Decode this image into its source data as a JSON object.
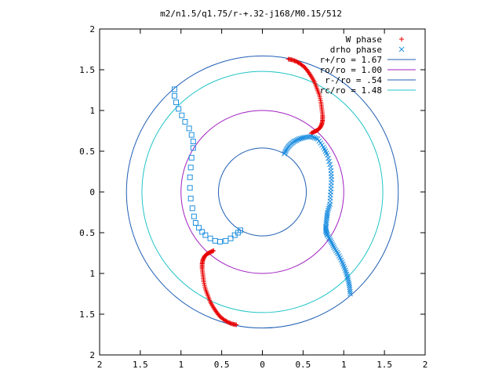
{
  "chart_data": {
    "type": "scatter",
    "title": "m2/n1.5/q1.75/r-+.32-j168/M0.15/512",
    "xlabel": "",
    "ylabel": "",
    "xlim": [
      -2,
      2
    ],
    "ylim": [
      -2,
      2
    ],
    "x_tick_values": [
      -2,
      -1.5,
      -1,
      -0.5,
      0,
      0.5,
      1,
      1.5,
      2
    ],
    "x_tick_labels": [
      "2",
      "1.5",
      "1",
      "0.5",
      "0",
      "0.5",
      "1",
      "1.5",
      "2"
    ],
    "y_tick_values": [
      2,
      1.5,
      1,
      0.5,
      0,
      -0.5,
      -1,
      -1.5,
      -2
    ],
    "y_tick_labels": [
      "2",
      "1.5",
      "1",
      "0.5",
      "0",
      "0.5",
      "1",
      "1.5",
      "2"
    ],
    "grid": false,
    "legend_position": "top-right",
    "circles": [
      {
        "name": "r+/ro = 1.67",
        "radius": 1.67,
        "color": "#1f5fb4"
      },
      {
        "name": "ro/ro = 1.00",
        "radius": 1.0,
        "color": "#a020c0"
      },
      {
        "name": "r-/ro = .54",
        "radius": 0.54,
        "color": "#1f5fb4"
      },
      {
        "name": "rc/ro = 1.48",
        "radius": 1.48,
        "color": "#22c4c8"
      }
    ],
    "series": [
      {
        "name": "W phase",
        "marker": "plus",
        "color": "#e80000",
        "points": [
          [
            0.32,
            1.63
          ],
          [
            0.37,
            1.62
          ],
          [
            0.42,
            1.6
          ],
          [
            0.47,
            1.57
          ],
          [
            0.52,
            1.53
          ],
          [
            0.56,
            1.48
          ],
          [
            0.6,
            1.42
          ],
          [
            0.64,
            1.35
          ],
          [
            0.67,
            1.27
          ],
          [
            0.7,
            1.19
          ],
          [
            0.72,
            1.1
          ],
          [
            0.73,
            1.02
          ],
          [
            0.74,
            0.94
          ],
          [
            0.74,
            0.88
          ],
          [
            0.73,
            0.83
          ],
          [
            0.71,
            0.79
          ],
          [
            0.68,
            0.76
          ],
          [
            0.64,
            0.74
          ],
          [
            0.6,
            0.72
          ],
          [
            -0.32,
            -1.63
          ],
          [
            -0.37,
            -1.62
          ],
          [
            -0.42,
            -1.6
          ],
          [
            -0.47,
            -1.57
          ],
          [
            -0.52,
            -1.53
          ],
          [
            -0.56,
            -1.48
          ],
          [
            -0.6,
            -1.42
          ],
          [
            -0.64,
            -1.35
          ],
          [
            -0.67,
            -1.27
          ],
          [
            -0.7,
            -1.19
          ],
          [
            -0.72,
            -1.1
          ],
          [
            -0.73,
            -1.02
          ],
          [
            -0.74,
            -0.94
          ],
          [
            -0.74,
            -0.88
          ],
          [
            -0.73,
            -0.83
          ],
          [
            -0.71,
            -0.79
          ],
          [
            -0.68,
            -0.76
          ],
          [
            -0.64,
            -0.74
          ],
          [
            -0.6,
            -0.72
          ]
        ]
      },
      {
        "name": "drho phase",
        "marker": "x",
        "color": "#1f8fe0",
        "points": [
          [
            0.27,
            0.47
          ],
          [
            0.3,
            0.53
          ],
          [
            0.34,
            0.58
          ],
          [
            0.39,
            0.62
          ],
          [
            0.45,
            0.65
          ],
          [
            0.52,
            0.67
          ],
          [
            0.6,
            0.68
          ],
          [
            0.68,
            0.65
          ],
          [
            0.75,
            0.55
          ],
          [
            0.8,
            0.45
          ],
          [
            0.84,
            0.3
          ],
          [
            0.85,
            0.15
          ],
          [
            0.84,
            0.0
          ],
          [
            0.83,
            -0.15
          ],
          [
            0.8,
            -0.25
          ],
          [
            0.79,
            -0.33
          ],
          [
            0.78,
            -0.42
          ],
          [
            0.78,
            -0.48
          ],
          [
            0.8,
            -0.53
          ],
          [
            0.84,
            -0.6
          ],
          [
            0.88,
            -0.68
          ],
          [
            0.93,
            -0.76
          ],
          [
            0.98,
            -0.86
          ],
          [
            1.02,
            -0.96
          ],
          [
            1.05,
            -1.06
          ],
          [
            1.07,
            -1.15
          ],
          [
            1.08,
            -1.25
          ]
        ]
      },
      {
        "name": "",
        "marker": "square",
        "color": "#1f8fe0",
        "points": [
          [
            -1.08,
            1.26
          ],
          [
            -1.08,
            1.18
          ],
          [
            -1.06,
            1.1
          ],
          [
            -1.03,
            1.02
          ],
          [
            -0.99,
            0.94
          ],
          [
            -0.95,
            0.86
          ],
          [
            -0.9,
            0.78
          ],
          [
            -0.87,
            0.7
          ],
          [
            -0.85,
            0.62
          ],
          [
            -0.85,
            0.54
          ],
          [
            -0.87,
            0.42
          ],
          [
            -0.88,
            0.3
          ],
          [
            -0.89,
            0.18
          ],
          [
            -0.89,
            0.05
          ],
          [
            -0.88,
            -0.08
          ],
          [
            -0.86,
            -0.2
          ],
          [
            -0.84,
            -0.3
          ],
          [
            -0.82,
            -0.38
          ],
          [
            -0.78,
            -0.44
          ],
          [
            -0.74,
            -0.49
          ],
          [
            -0.7,
            -0.53
          ],
          [
            -0.64,
            -0.57
          ],
          [
            -0.58,
            -0.6
          ],
          [
            -0.52,
            -0.61
          ],
          [
            -0.45,
            -0.6
          ],
          [
            -0.39,
            -0.57
          ],
          [
            -0.34,
            -0.53
          ],
          [
            -0.3,
            -0.5
          ],
          [
            -0.27,
            -0.47
          ]
        ]
      }
    ]
  }
}
